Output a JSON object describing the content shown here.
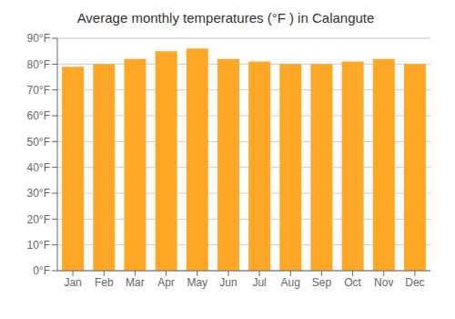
{
  "chart_data": {
    "type": "bar",
    "title": "Average monthly temperatures (°F ) in Calangute",
    "categories": [
      "Jan",
      "Feb",
      "Mar",
      "Apr",
      "May",
      "Jun",
      "Jul",
      "Aug",
      "Sep",
      "Oct",
      "Nov",
      "Dec"
    ],
    "values": [
      79,
      80,
      82,
      85,
      86,
      82,
      81,
      80,
      80,
      81,
      82,
      80
    ],
    "color": "#ffa726",
    "ylim": [
      0,
      90
    ],
    "yticks": [
      {
        "value": 0,
        "label": "0°F"
      },
      {
        "value": 10,
        "label": "10°F"
      },
      {
        "value": 20,
        "label": "20°F"
      },
      {
        "value": 30,
        "label": "30°F"
      },
      {
        "value": 40,
        "label": "40°F"
      },
      {
        "value": 50,
        "label": "50°F"
      },
      {
        "value": 60,
        "label": "60°F"
      },
      {
        "value": 70,
        "label": "70°F"
      },
      {
        "value": 80,
        "label": "80°F"
      },
      {
        "value": 90,
        "label": "90°F"
      }
    ],
    "grid": true
  }
}
